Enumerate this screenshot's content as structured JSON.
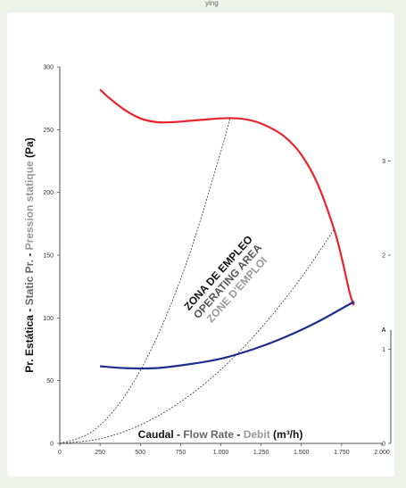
{
  "header": {
    "fragment": "ying"
  },
  "chart_data": {
    "type": "line",
    "x_axis": {
      "title_parts": [
        {
          "text": "Caudal",
          "color": "#111111"
        },
        {
          "text": " - ",
          "color": "#111111"
        },
        {
          "text": "Flow Rate",
          "color": "#666666"
        },
        {
          "text": " - ",
          "color": "#111111"
        },
        {
          "text": "Debit",
          "color": "#999999"
        },
        {
          "text": " (m³/h)",
          "color": "#111111"
        }
      ],
      "range": [
        0,
        2000
      ],
      "ticks": [
        {
          "v": 0,
          "label": "0"
        },
        {
          "v": 250,
          "label": "250"
        },
        {
          "v": 500,
          "label": "500"
        },
        {
          "v": 750,
          "label": "750"
        },
        {
          "v": 1000,
          "label": "1.000"
        },
        {
          "v": 1250,
          "label": "1.250"
        },
        {
          "v": 1500,
          "label": "1.500"
        },
        {
          "v": 1750,
          "label": "1.750"
        },
        {
          "v": 2000,
          "label": "2.000"
        }
      ]
    },
    "y_axis_left": {
      "title_parts": [
        {
          "text": "Pr. Estática",
          "color": "#111111"
        },
        {
          "text": " - ",
          "color": "#111111"
        },
        {
          "text": "Static Pr.",
          "color": "#666666"
        },
        {
          "text": " - ",
          "color": "#111111"
        },
        {
          "text": "Pression statique",
          "color": "#999999"
        },
        {
          "text": " (Pa)",
          "color": "#111111"
        }
      ],
      "range": [
        0,
        300
      ],
      "ticks": [
        0,
        50,
        100,
        150,
        200,
        250,
        300
      ]
    },
    "y_axis_right": {
      "title": "A",
      "range": [
        0,
        4
      ],
      "ticks": [
        0,
        1,
        2,
        3
      ]
    },
    "series": [
      {
        "axis": "left",
        "color": "#e8232b",
        "points": [
          [
            250,
            282
          ],
          [
            300,
            276
          ],
          [
            400,
            266
          ],
          [
            500,
            259
          ],
          [
            600,
            256
          ],
          [
            700,
            256
          ],
          [
            800,
            257
          ],
          [
            900,
            258
          ],
          [
            1000,
            259
          ],
          [
            1100,
            259
          ],
          [
            1200,
            257
          ],
          [
            1300,
            252
          ],
          [
            1400,
            244
          ],
          [
            1500,
            230
          ],
          [
            1600,
            207
          ],
          [
            1700,
            172
          ],
          [
            1750,
            148
          ],
          [
            1800,
            120
          ],
          [
            1825,
            110
          ]
        ]
      },
      {
        "axis": "right",
        "color": "#1f2d8f",
        "points": [
          [
            250,
            0.82
          ],
          [
            400,
            0.8
          ],
          [
            600,
            0.8
          ],
          [
            800,
            0.84
          ],
          [
            1000,
            0.9
          ],
          [
            1200,
            1.0
          ],
          [
            1400,
            1.13
          ],
          [
            1600,
            1.29
          ],
          [
            1800,
            1.48
          ],
          [
            1830,
            1.5
          ]
        ]
      },
      {
        "axis": "left",
        "color": "#333333",
        "dashed": true,
        "points": [
          [
            0,
            0
          ],
          [
            200,
            9.3
          ],
          [
            400,
            37.2
          ],
          [
            600,
            83.7
          ],
          [
            800,
            148.8
          ],
          [
            1000,
            232.5
          ],
          [
            1058,
            260
          ]
        ]
      },
      {
        "axis": "left",
        "color": "#333333",
        "dashed": true,
        "points": [
          [
            0,
            0
          ],
          [
            250,
            3.7
          ],
          [
            500,
            14.7
          ],
          [
            750,
            33.1
          ],
          [
            1000,
            58.8
          ],
          [
            1250,
            91.9
          ],
          [
            1500,
            132.3
          ],
          [
            1700,
            170
          ]
        ]
      }
    ],
    "annotations": [
      {
        "text": "ZONA DE EMPLEO",
        "color": "#111111"
      },
      {
        "text": "OPERATING AREA",
        "color": "#555555"
      },
      {
        "text": "ZONE D'EMPLOI",
        "color": "#999999"
      }
    ],
    "grid": false,
    "legend": "none"
  }
}
